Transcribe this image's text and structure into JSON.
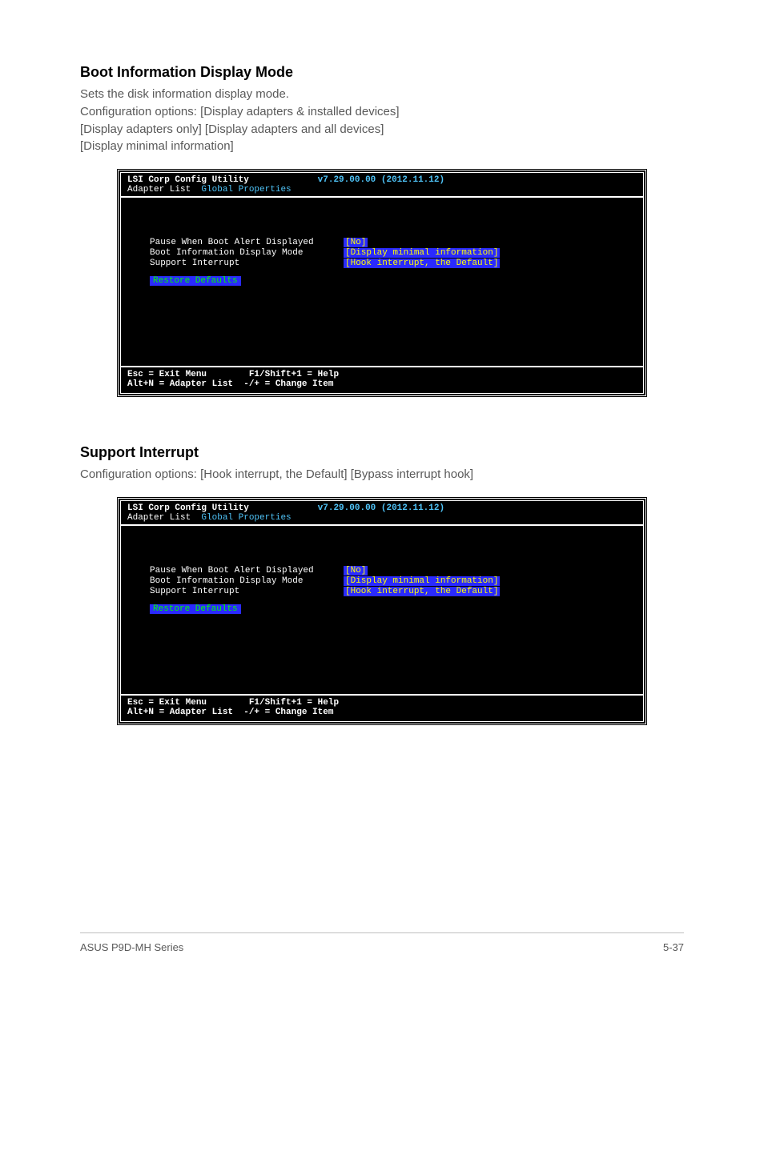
{
  "section1": {
    "heading": "Boot Information Display Mode",
    "body_line1": "Sets the disk information display mode.",
    "body_line2": "Configuration options: [Display adapters & installed devices]",
    "body_line3": "[Display adapters only] [Display adapters and all devices]",
    "body_line4": "[Display minimal information]"
  },
  "section2": {
    "heading": "Support Interrupt",
    "body_line1": "Configuration options: [Hook interrupt, the Default] [Bypass interrupt hook]"
  },
  "terminal": {
    "title": "LSI Corp Config Utility",
    "version": "v7.29.00.00 (2012.11.12)",
    "breadcrumb_prefix": "Adapter List  ",
    "breadcrumb_current": "Global Properties",
    "row1_label": "Pause When Boot Alert Displayed",
    "row1_value": "[No]",
    "row2_label": "Boot Information Display Mode",
    "row2_value": "[Display minimal information]",
    "row3_label": "Support Interrupt",
    "row3_value": "[Hook interrupt, the Default]",
    "restore": "Restore Defaults ",
    "footer_line1": "Esc = Exit Menu        F1/Shift+1 = Help",
    "footer_line2": "Alt+N = Adapter List  -/+ = Change Item"
  },
  "footer": {
    "left": "ASUS P9D-MH Series",
    "right": "5-37"
  },
  "colors": {
    "body_text": "#595959",
    "terminal_bg": "#000000",
    "terminal_fg": "#ffffff",
    "version_color": "#4fc3f7",
    "highlight_bg": "#2a2aff",
    "highlight_value_fg": "#ffff00",
    "highlight_restore_fg": "#00ff00"
  }
}
